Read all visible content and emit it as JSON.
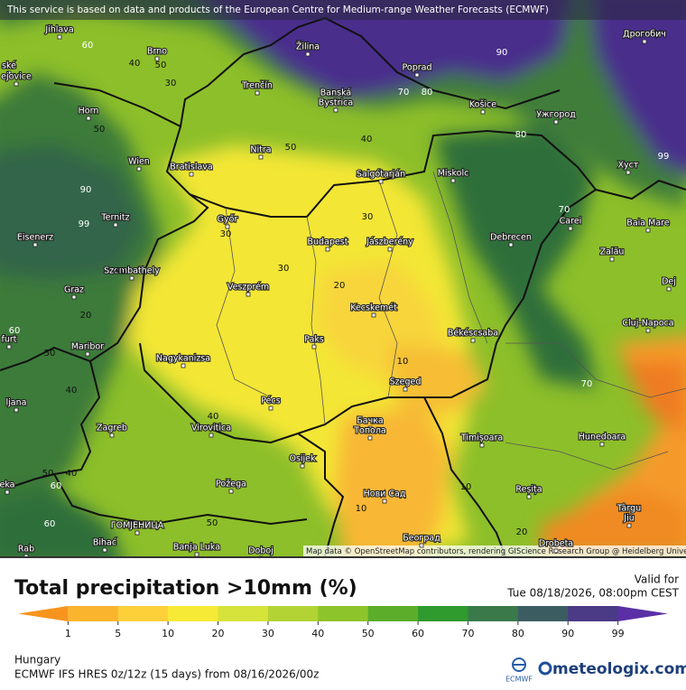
{
  "header": {
    "notice": "This service is based on data and products of the European Centre for Medium-range Weather Forecasts (ECMWF)"
  },
  "map": {
    "attribution": "Map data © OpenStreetMap contributors, rendering GIScience Research Group @ Heidelberg University",
    "cities": [
      "Jihlava",
      "Brno",
      "ské",
      "ejovice",
      "Žilina",
      "Poprad",
      "Дрогобич",
      "Trenčín",
      "Banská",
      "Bystrica",
      "Košice",
      "Ужгород",
      "Horn",
      "Nitra",
      "Wien",
      "Bratislava",
      "Salgótarján",
      "Miskolc",
      "Хуст",
      "Ternitz",
      "Győr",
      "Carei",
      "Baia Mare",
      "Eisenerz",
      "Budapest",
      "Jászberény",
      "Debrecen",
      "Zalău",
      "Szombathely",
      "Veszprém",
      "Graz",
      "Dej",
      "Kecskemét",
      "Cluj-Napoca",
      "Paks",
      "Békéscsaba",
      "furt",
      "Maribor",
      "Nagykanizsa",
      "Szeged",
      "ljana",
      "Pécs",
      "Zagreb",
      "Virovitica",
      "Бачка",
      "Топола",
      "Timișoara",
      "Hunedoara",
      "Osijek",
      "eka",
      "Požega",
      "Нови Сад",
      "Reșița",
      "Târgu",
      "Jiu",
      "ГОМЈЕНИЦА",
      "Bihać",
      "Banja Luka",
      "Doboj",
      "Београд",
      "Drobeta",
      "Rab"
    ],
    "contour_labels": [
      60,
      40,
      50,
      30,
      90,
      70,
      80,
      50,
      40,
      50,
      80,
      99,
      90,
      99,
      30,
      70,
      30,
      30,
      40,
      20,
      20,
      60,
      50,
      40,
      10,
      70,
      40,
      50,
      40,
      60,
      10,
      10,
      60,
      50,
      20
    ]
  },
  "legend": {
    "title": "Total precipitation >10mm (%)",
    "valid_label": "Valid for",
    "valid_time": "Tue 08/18/2026, 08:00pm CEST",
    "ticks": [
      1,
      5,
      10,
      20,
      30,
      40,
      50,
      60,
      70,
      80,
      90,
      99
    ],
    "colors": [
      "#f7941d",
      "#fbb42e",
      "#fdd03a",
      "#f7ea36",
      "#d6e33a",
      "#b3d334",
      "#8ec42b",
      "#5cae2a",
      "#2f9a2e",
      "#3a7a4a",
      "#3b5d62",
      "#4b3a86",
      "#5b2fa6"
    ]
  },
  "footer": {
    "region": "Hungary",
    "model": "ECMWF IFS HRES 0z/12z (15 days) from 08/16/2026/00z",
    "ecmwf": "ECMWF",
    "brand": "meteologix.com"
  }
}
